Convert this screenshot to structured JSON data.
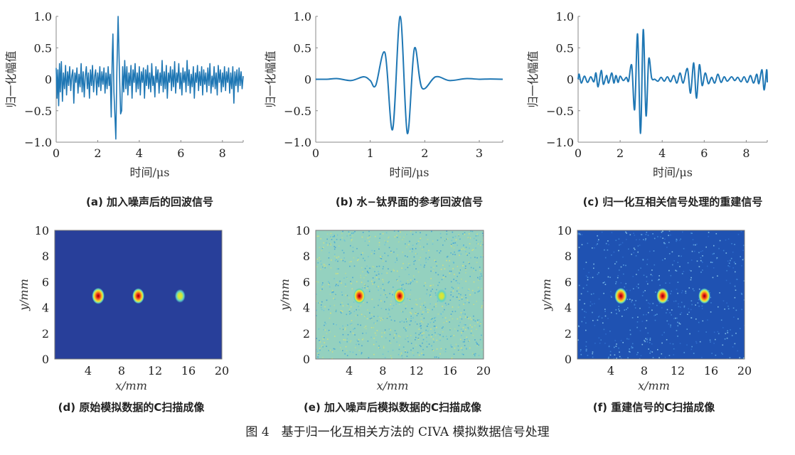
{
  "figure_caption": "图 4　基于归一化互相关方法的 CIVA 模拟数据信号处理",
  "chart_data": [
    {
      "id": "a",
      "type": "line",
      "caption": "(a) 加入噪声后的回波信号",
      "xlabel": "时间/μs",
      "ylabel": "归一化幅值",
      "xlim": [
        0,
        9
      ],
      "ylim": [
        -1,
        1
      ],
      "xticks": [
        0,
        2,
        4,
        6,
        8
      ],
      "xtick_labels": [
        "0",
        "2",
        "4",
        "6",
        "8"
      ],
      "yticks": [
        1,
        0.5,
        0,
        -0.5,
        -1
      ],
      "ytick_labels": [
        "1.0",
        "0.5",
        "0",
        "−0.5",
        "−1.0"
      ],
      "color": "#1f77b4",
      "smooth": false,
      "points": [
        [
          0,
          0.18
        ],
        [
          0.04,
          -0.3
        ],
        [
          0.08,
          0.15
        ],
        [
          0.12,
          -0.42
        ],
        [
          0.16,
          0.25
        ],
        [
          0.2,
          -0.2
        ],
        [
          0.25,
          0.28
        ],
        [
          0.3,
          -0.35
        ],
        [
          0.35,
          0.1
        ],
        [
          0.4,
          -0.15
        ],
        [
          0.45,
          0.22
        ],
        [
          0.5,
          -0.25
        ],
        [
          0.55,
          0.12
        ],
        [
          0.6,
          -0.1
        ],
        [
          0.65,
          0.2
        ],
        [
          0.7,
          -0.18
        ],
        [
          0.75,
          0.05
        ],
        [
          0.8,
          0.15
        ],
        [
          0.85,
          -0.38
        ],
        [
          0.9,
          0.1
        ],
        [
          0.95,
          -0.05
        ],
        [
          1.0,
          0.18
        ],
        [
          1.05,
          -0.22
        ],
        [
          1.1,
          0.08
        ],
        [
          1.15,
          -0.12
        ],
        [
          1.2,
          0.25
        ],
        [
          1.25,
          -0.2
        ],
        [
          1.3,
          0.12
        ],
        [
          1.35,
          -0.28
        ],
        [
          1.4,
          0.05
        ],
        [
          1.45,
          0.2
        ],
        [
          1.5,
          -0.15
        ],
        [
          1.55,
          0.1
        ],
        [
          1.6,
          -0.3
        ],
        [
          1.65,
          0.15
        ],
        [
          1.7,
          -0.1
        ],
        [
          1.75,
          0.22
        ],
        [
          1.8,
          -0.2
        ],
        [
          1.85,
          0.05
        ],
        [
          1.9,
          0.15
        ],
        [
          1.95,
          -0.25
        ],
        [
          2.0,
          0.1
        ],
        [
          2.05,
          -0.12
        ],
        [
          2.1,
          0.2
        ],
        [
          2.15,
          -0.18
        ],
        [
          2.2,
          0.12
        ],
        [
          2.25,
          -0.08
        ],
        [
          2.3,
          0.18
        ],
        [
          2.35,
          -0.22
        ],
        [
          2.4,
          0.1
        ],
        [
          2.45,
          -0.15
        ],
        [
          2.5,
          0.2
        ],
        [
          2.55,
          -0.1
        ],
        [
          2.6,
          0.08
        ],
        [
          2.65,
          -0.6
        ],
        [
          2.7,
          0.4
        ],
        [
          2.73,
          0.72
        ],
        [
          2.78,
          -0.2
        ],
        [
          2.83,
          -0.6
        ],
        [
          2.87,
          -0.95
        ],
        [
          2.92,
          0.1
        ],
        [
          2.98,
          1.0
        ],
        [
          3.04,
          0.2
        ],
        [
          3.1,
          -0.55
        ],
        [
          3.15,
          -0.5
        ],
        [
          3.2,
          0.2
        ],
        [
          3.25,
          -0.2
        ],
        [
          3.3,
          0.3
        ],
        [
          3.35,
          -0.15
        ],
        [
          3.4,
          0.2
        ],
        [
          3.45,
          -0.25
        ],
        [
          3.5,
          0.1
        ],
        [
          3.55,
          -0.1
        ],
        [
          3.6,
          0.22
        ],
        [
          3.65,
          -0.3
        ],
        [
          3.7,
          0.15
        ],
        [
          3.75,
          -0.05
        ],
        [
          3.8,
          0.25
        ],
        [
          3.85,
          -0.2
        ],
        [
          3.9,
          0.1
        ],
        [
          3.95,
          -0.15
        ],
        [
          4.0,
          0.2
        ],
        [
          4.05,
          -0.25
        ],
        [
          4.1,
          0.12
        ],
        [
          4.15,
          -0.05
        ],
        [
          4.2,
          0.18
        ],
        [
          4.25,
          -0.3
        ],
        [
          4.3,
          0.15
        ],
        [
          4.35,
          -0.1
        ],
        [
          4.4,
          0.22
        ],
        [
          4.45,
          -0.15
        ],
        [
          4.5,
          0.1
        ],
        [
          4.55,
          -0.2
        ],
        [
          4.6,
          0.25
        ],
        [
          4.65,
          -0.1
        ],
        [
          4.7,
          0.05
        ],
        [
          4.75,
          -0.28
        ],
        [
          4.8,
          0.2
        ],
        [
          4.85,
          -0.05
        ],
        [
          4.9,
          0.15
        ],
        [
          4.95,
          -0.22
        ],
        [
          5.0,
          0.1
        ],
        [
          5.05,
          -0.1
        ],
        [
          5.1,
          0.3
        ],
        [
          5.15,
          -0.2
        ],
        [
          5.2,
          0.12
        ],
        [
          5.25,
          -0.15
        ],
        [
          5.3,
          0.22
        ],
        [
          5.35,
          -0.3
        ],
        [
          5.4,
          0.1
        ],
        [
          5.45,
          -0.05
        ],
        [
          5.5,
          0.2
        ],
        [
          5.55,
          -0.18
        ],
        [
          5.6,
          0.15
        ],
        [
          5.65,
          -0.12
        ],
        [
          5.7,
          0.28
        ],
        [
          5.75,
          -0.22
        ],
        [
          5.8,
          0.1
        ],
        [
          5.85,
          -0.05
        ],
        [
          5.9,
          0.25
        ],
        [
          5.95,
          -0.15
        ],
        [
          6.0,
          0.1
        ],
        [
          6.05,
          -0.25
        ],
        [
          6.1,
          0.18
        ],
        [
          6.15,
          -0.05
        ],
        [
          6.2,
          0.12
        ],
        [
          6.25,
          -0.2
        ],
        [
          6.3,
          0.3
        ],
        [
          6.35,
          -0.1
        ],
        [
          6.4,
          0.15
        ],
        [
          6.45,
          -0.22
        ],
        [
          6.5,
          0.08
        ],
        [
          6.55,
          -0.12
        ],
        [
          6.6,
          0.2
        ],
        [
          6.65,
          -0.3
        ],
        [
          6.7,
          0.1
        ],
        [
          6.75,
          -0.05
        ],
        [
          6.8,
          0.22
        ],
        [
          6.85,
          -0.18
        ],
        [
          6.9,
          0.12
        ],
        [
          6.95,
          -0.1
        ],
        [
          7.0,
          0.2
        ],
        [
          7.05,
          -0.25
        ],
        [
          7.1,
          0.15
        ],
        [
          7.15,
          -0.08
        ],
        [
          7.2,
          0.1
        ],
        [
          7.25,
          -0.2
        ],
        [
          7.3,
          0.18
        ],
        [
          7.35,
          -0.1
        ],
        [
          7.4,
          0.25
        ],
        [
          7.45,
          -0.22
        ],
        [
          7.5,
          0.05
        ],
        [
          7.55,
          -0.12
        ],
        [
          7.6,
          0.2
        ],
        [
          7.65,
          -0.15
        ],
        [
          7.7,
          0.1
        ],
        [
          7.75,
          -0.25
        ],
        [
          7.8,
          0.22
        ],
        [
          7.85,
          -0.05
        ],
        [
          7.9,
          0.15
        ],
        [
          7.95,
          -0.2
        ],
        [
          8.0,
          0.1
        ],
        [
          8.05,
          -0.12
        ],
        [
          8.1,
          0.2
        ],
        [
          8.15,
          -0.18
        ],
        [
          8.2,
          0.12
        ],
        [
          8.25,
          -0.05
        ],
        [
          8.3,
          0.18
        ],
        [
          8.35,
          -0.22
        ],
        [
          8.4,
          0.1
        ],
        [
          8.45,
          -0.15
        ],
        [
          8.5,
          0.2
        ],
        [
          8.55,
          -0.38
        ],
        [
          8.6,
          0.12
        ],
        [
          8.65,
          -0.1
        ],
        [
          8.7,
          0.15
        ],
        [
          8.75,
          -0.2
        ],
        [
          8.8,
          0.18
        ],
        [
          8.85,
          -0.1
        ],
        [
          8.9,
          0.12
        ],
        [
          8.95,
          -0.15
        ],
        [
          9.0,
          0.05
        ]
      ]
    },
    {
      "id": "b",
      "type": "line",
      "caption": "(b) 水−钛界面的参考回波信号",
      "xlabel": "时间/μs",
      "ylabel": "归一化幅值",
      "xlim": [
        0,
        3.43
      ],
      "ylim": [
        -1,
        1
      ],
      "xticks": [
        0,
        1,
        2,
        3
      ],
      "xtick_labels": [
        "0",
        "1",
        "2",
        "3"
      ],
      "yticks": [
        1,
        0.5,
        0,
        -0.5,
        -1
      ],
      "ytick_labels": [
        "1.0",
        "0.5",
        "0",
        "−0.5",
        "−1.0"
      ],
      "color": "#1f77b4",
      "smooth": true,
      "points": [
        [
          0,
          0
        ],
        [
          0.2,
          0
        ],
        [
          0.4,
          0.01
        ],
        [
          0.65,
          -0.02
        ],
        [
          0.88,
          0.04
        ],
        [
          1.0,
          -0.02
        ],
        [
          1.1,
          -0.1
        ],
        [
          1.27,
          0.42
        ],
        [
          1.41,
          -0.8
        ],
        [
          1.55,
          1.0
        ],
        [
          1.68,
          -0.86
        ],
        [
          1.81,
          0.49
        ],
        [
          1.95,
          -0.14
        ],
        [
          2.2,
          0.04
        ],
        [
          2.45,
          -0.02
        ],
        [
          2.75,
          0.01
        ],
        [
          3.0,
          0
        ],
        [
          3.2,
          0.005
        ],
        [
          3.43,
          0
        ]
      ]
    },
    {
      "id": "c",
      "type": "line",
      "caption": "(c) 归一化互相关信号处理的重建信号",
      "xlabel": "时间/μs",
      "ylabel": "归一化幅值",
      "xlim": [
        0,
        9
      ],
      "ylim": [
        -1,
        1
      ],
      "xticks": [
        0,
        2,
        4,
        6,
        8
      ],
      "xtick_labels": [
        "0",
        "2",
        "4",
        "6",
        "8"
      ],
      "yticks": [
        1,
        0.5,
        0,
        -0.5,
        -1
      ],
      "ytick_labels": [
        "1.0",
        "0.5",
        "0",
        "−0.5",
        "−1.0"
      ],
      "color": "#1f77b4",
      "smooth": true,
      "points": [
        [
          0,
          0
        ],
        [
          0.05,
          0.08
        ],
        [
          0.15,
          -0.06
        ],
        [
          0.3,
          0.05
        ],
        [
          0.45,
          -0.05
        ],
        [
          0.6,
          0.04
        ],
        [
          0.75,
          -0.04
        ],
        [
          0.85,
          0.1
        ],
        [
          0.95,
          -0.12
        ],
        [
          1.1,
          0.14
        ],
        [
          1.2,
          -0.08
        ],
        [
          1.35,
          0.06
        ],
        [
          1.45,
          -0.06
        ],
        [
          1.6,
          0.1
        ],
        [
          1.7,
          -0.06
        ],
        [
          1.8,
          0.06
        ],
        [
          1.9,
          -0.05
        ],
        [
          2.0,
          0.05
        ],
        [
          2.15,
          -0.02
        ],
        [
          2.3,
          0.03
        ],
        [
          2.4,
          -0.03
        ],
        [
          2.55,
          0.22
        ],
        [
          2.69,
          -0.48
        ],
        [
          2.83,
          0.72
        ],
        [
          2.97,
          -0.86
        ],
        [
          3.1,
          0.79
        ],
        [
          3.23,
          -0.58
        ],
        [
          3.36,
          0.32
        ],
        [
          3.5,
          0.02
        ],
        [
          3.65,
          0
        ],
        [
          3.8,
          -0.03
        ],
        [
          3.95,
          0.03
        ],
        [
          4.1,
          -0.03
        ],
        [
          4.25,
          0.04
        ],
        [
          4.4,
          -0.04
        ],
        [
          4.55,
          0.06
        ],
        [
          4.7,
          -0.06
        ],
        [
          4.85,
          0.1
        ],
        [
          5.0,
          -0.06
        ],
        [
          5.2,
          0.17
        ],
        [
          5.35,
          -0.22
        ],
        [
          5.5,
          0.26
        ],
        [
          5.63,
          -0.3
        ],
        [
          5.77,
          0.23
        ],
        [
          5.9,
          -0.1
        ],
        [
          6.05,
          0.1
        ],
        [
          6.2,
          -0.07
        ],
        [
          6.35,
          0.03
        ],
        [
          6.5,
          -0.06
        ],
        [
          6.65,
          0.08
        ],
        [
          6.8,
          -0.05
        ],
        [
          6.95,
          0.04
        ],
        [
          7.1,
          -0.03
        ],
        [
          7.3,
          0.04
        ],
        [
          7.45,
          -0.02
        ],
        [
          7.6,
          0.03
        ],
        [
          7.75,
          -0.04
        ],
        [
          7.9,
          0.04
        ],
        [
          8.05,
          -0.05
        ],
        [
          8.2,
          0.06
        ],
        [
          8.35,
          -0.06
        ],
        [
          8.5,
          0.08
        ],
        [
          8.6,
          -0.07
        ],
        [
          8.75,
          0.15
        ],
        [
          8.85,
          -0.17
        ],
        [
          8.97,
          0.15
        ],
        [
          9.0,
          -0.05
        ]
      ]
    },
    {
      "id": "d",
      "type": "heatmap",
      "caption": "(d) 原始模拟数据的C扫描成像",
      "xlabel": "x/mm",
      "ylabel": "y/mm",
      "xlim": [
        0,
        20
      ],
      "ylim": [
        0,
        10
      ],
      "xticks": [
        4,
        8,
        12,
        16,
        20
      ],
      "xtick_labels": [
        "4",
        "8",
        "12",
        "16",
        "20"
      ],
      "yticks": [
        10,
        8,
        6,
        4,
        2,
        0
      ],
      "ytick_labels": [
        "10",
        "8",
        "6",
        "4",
        "2",
        "0"
      ],
      "colormap": "jet",
      "background_color": "#283f9a",
      "noise_level": 0,
      "spots": [
        {
          "x": 5.2,
          "y": 4.9,
          "peak": 0.95
        },
        {
          "x": 10.0,
          "y": 4.9,
          "peak": 0.85
        },
        {
          "x": 15.0,
          "y": 4.9,
          "peak": 0.6
        }
      ]
    },
    {
      "id": "e",
      "type": "heatmap",
      "caption": "(e) 加入噪声后模拟数据的C扫描成像",
      "xlabel": "x/mm",
      "ylabel": "y/mm",
      "xlim": [
        0,
        20
      ],
      "ylim": [
        0,
        10
      ],
      "xticks": [
        4,
        8,
        12,
        16,
        20
      ],
      "xtick_labels": [
        "4",
        "8",
        "12",
        "16",
        "20"
      ],
      "yticks": [
        10,
        8,
        6,
        4,
        2,
        0
      ],
      "ytick_labels": [
        "10",
        "8",
        "6",
        "4",
        "2",
        "0"
      ],
      "colormap": "jet",
      "background_color": "#94d1bf",
      "noise_level": 0.8,
      "spots": [
        {
          "x": 5.2,
          "y": 4.9,
          "peak": 0.9
        },
        {
          "x": 10.0,
          "y": 4.9,
          "peak": 0.85
        },
        {
          "x": 15.0,
          "y": 4.9,
          "peak": 0.65
        }
      ]
    },
    {
      "id": "f",
      "type": "heatmap",
      "caption": "(f) 重建信号的C扫描成像",
      "xlabel": "x/mm",
      "ylabel": "y/mm",
      "xlim": [
        0,
        20
      ],
      "ylim": [
        0,
        10
      ],
      "xticks": [
        4,
        8,
        12,
        16,
        20
      ],
      "xtick_labels": [
        "4",
        "8",
        "12",
        "16",
        "20"
      ],
      "yticks": [
        10,
        8,
        6,
        4,
        2,
        0
      ],
      "ytick_labels": [
        "10",
        "8",
        "6",
        "4",
        "2",
        "0"
      ],
      "colormap": "jet",
      "background_color": "#1f52b2",
      "noise_level": 0.4,
      "spots": [
        {
          "x": 5.2,
          "y": 4.9,
          "peak": 0.95
        },
        {
          "x": 10.2,
          "y": 4.9,
          "peak": 0.9
        },
        {
          "x": 15.2,
          "y": 4.9,
          "peak": 0.85
        }
      ]
    }
  ]
}
